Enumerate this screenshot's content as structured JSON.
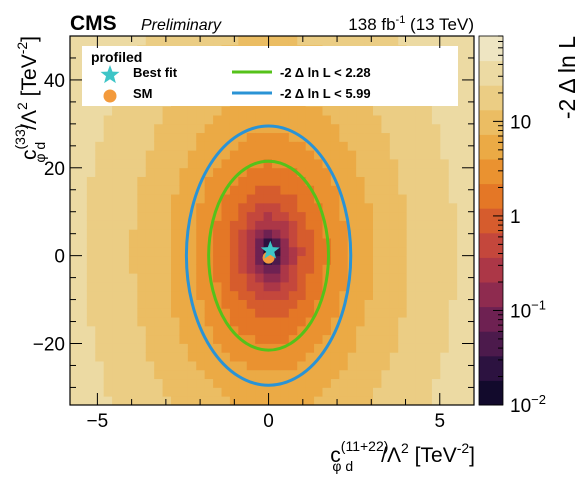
{
  "header": {
    "experiment": "CMS",
    "status": "Preliminary",
    "lumi_value": "138 fb",
    "lumi_exp": "-1",
    "energy": " (13 TeV)"
  },
  "chart_data": {
    "type": "heatmap",
    "xlabel": {
      "base": "c",
      "sup": "(11+22)",
      "sub": "φ d",
      "rest": "/Λ",
      "pow": "2",
      "unit": " [TeV",
      "unit_pow": "-2",
      "close": "]"
    },
    "ylabel": {
      "base": "c",
      "sup": "(33)",
      "sub": "φ d",
      "rest": "/Λ",
      "pow": "2",
      "unit": " [TeV",
      "unit_pow": "-2",
      "close": "]"
    },
    "zlabel": "-2 Δ ln L",
    "xlim": [
      -5.8,
      6.0
    ],
    "ylim": [
      -34,
      50
    ],
    "zlim": [
      0.01,
      80
    ],
    "z_scale": "log",
    "x_ticks": [
      -5,
      0,
      5
    ],
    "x_tick_labels": [
      "−5",
      "0",
      "5"
    ],
    "y_ticks": [
      -20,
      0,
      20,
      40
    ],
    "y_tick_labels": [
      "−20",
      "0",
      "20",
      "40"
    ],
    "z_tick_labels": [
      {
        "value": 10,
        "base": "10",
        "exp": ""
      },
      {
        "value": 1,
        "base": "1",
        "exp": ""
      },
      {
        "value": 0.1,
        "base": "10",
        "exp": "−1"
      },
      {
        "value": 0.01,
        "base": "10",
        "exp": "−2"
      }
    ],
    "legend": {
      "title": "profiled",
      "position": "top",
      "entries": [
        {
          "label": "Best fit",
          "marker": "star",
          "color": "#3ec5c7"
        },
        {
          "label": "SM",
          "marker": "circle",
          "color": "#f39a3c"
        },
        {
          "label": "-2  Δ ln L < 2.28",
          "marker": "line",
          "color": "#55c21a"
        },
        {
          "label": "-2  Δ ln L < 5.99",
          "marker": "line",
          "color": "#2a93d5"
        }
      ]
    },
    "best_fit": {
      "x": 0.05,
      "y": 0.7
    },
    "sm_point": {
      "x": 0.0,
      "y": 0.0
    },
    "contours": [
      {
        "level": 2.28,
        "center": [
          0.0,
          0.0
        ],
        "semi_axes": [
          1.75,
          21.5
        ],
        "color": "#55c21a"
      },
      {
        "level": 5.99,
        "center": [
          0.0,
          0.0
        ],
        "semi_axes": [
          2.4,
          29.5
        ],
        "color": "#2a93d5"
      }
    ],
    "palette": [
      "#120a2c",
      "#2c1240",
      "#4c1a4c",
      "#6e2152",
      "#8e2b4f",
      "#ac3747",
      "#c4473c",
      "#d65c2d",
      "#e47726",
      "#ea9230",
      "#ebaa45",
      "#ebbd63",
      "#ebcd84",
      "#ecdaa3",
      "#eee5c2"
    ],
    "grid": false
  }
}
